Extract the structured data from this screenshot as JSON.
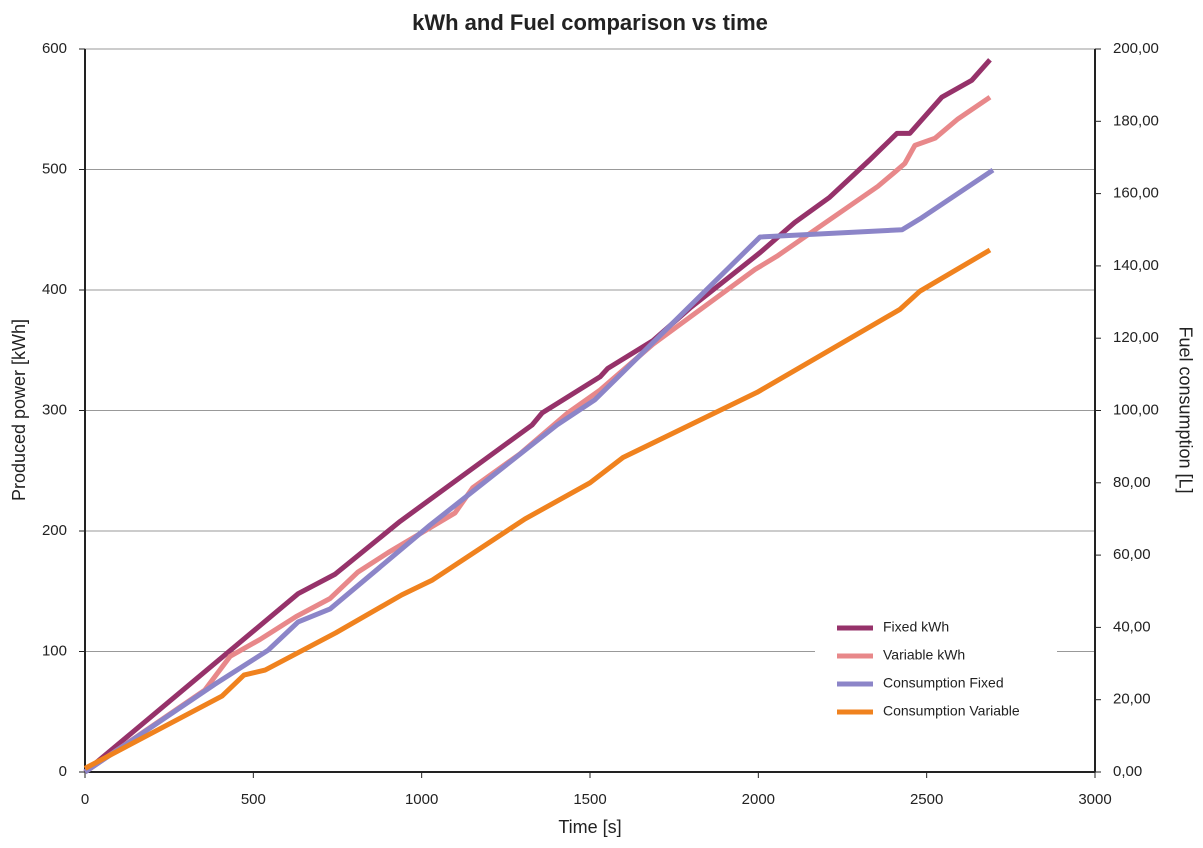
{
  "chart_data": {
    "type": "line",
    "title": "kWh and Fuel comparison vs time",
    "xlabel": "Time [s]",
    "ylabel": "Produced power [kWh]",
    "y2label": "Fuel consumption [L]",
    "xlim": [
      0,
      3000
    ],
    "xticks": [
      0,
      500,
      1000,
      1500,
      2000,
      2500,
      3000
    ],
    "ylim": [
      0,
      600
    ],
    "yticks": [
      0,
      100,
      200,
      300,
      400,
      500,
      600
    ],
    "y2lim": [
      0,
      200
    ],
    "y2ticks": [
      {
        "value": 0,
        "label": "0,00"
      },
      {
        "value": 20,
        "label": "20,00"
      },
      {
        "value": 40,
        "label": "40,00"
      },
      {
        "value": 60,
        "label": "60,00"
      },
      {
        "value": 80,
        "label": "80,00"
      },
      {
        "value": 100,
        "label": "100,00"
      },
      {
        "value": 120,
        "label": "120,00"
      },
      {
        "value": 140,
        "label": "140,00"
      },
      {
        "value": 160,
        "label": "160,00"
      },
      {
        "value": 180,
        "label": "180,00"
      },
      {
        "value": 200,
        "label": "200,00"
      }
    ],
    "grid": true,
    "legend": "lower right",
    "series": [
      {
        "name": "Fixed kWh",
        "color": "#96326a",
        "x": [
          0,
          633,
          742,
          936,
          1328,
          1358,
          1530,
          1553,
          1687,
          1797,
          1856,
          2005,
          2108,
          2212,
          2331,
          2412,
          2450,
          2545,
          2634,
          2688
        ],
        "values": [
          0,
          148,
          164,
          208,
          288,
          298,
          328,
          335,
          358,
          385,
          398,
          431,
          456,
          477,
          508,
          530,
          530,
          560,
          574,
          591
        ]
      },
      {
        "name": "Variable kWh",
        "color": "#e8888a",
        "x": [
          0,
          356,
          431,
          520,
          627,
          728,
          811,
          900,
          1099,
          1152,
          1292,
          1434,
          1530,
          1687,
          1990,
          2055,
          2355,
          2406,
          2435,
          2465,
          2525,
          2593,
          2688
        ],
        "values": [
          0,
          68,
          96,
          110,
          129,
          144,
          166,
          182,
          215,
          236,
          264,
          298,
          317,
          355,
          417,
          428,
          486,
          498,
          505,
          520,
          526,
          542,
          560
        ]
      },
      {
        "name": "Consumption Fixed",
        "color": "#8c85c8",
        "axis": "y2",
        "x": [
          0,
          386,
          544,
          633,
          728,
          1025,
          1402,
          1515,
          2005,
          2427,
          2480,
          2697
        ],
        "values": [
          0,
          24.3,
          33.7,
          41.5,
          45.1,
          68.3,
          96,
          103,
          148,
          150,
          153,
          166.5
        ]
      },
      {
        "name": "Consumption Variable",
        "color": "#f0821e",
        "axis": "y2",
        "x": [
          0,
          407,
          472,
          535,
          745,
          941,
          1030,
          1307,
          1500,
          1598,
          1996,
          2421,
          2480,
          2688
        ],
        "values": [
          1,
          21,
          26.8,
          28.2,
          38.5,
          49,
          53,
          70,
          80,
          87,
          105,
          128,
          133,
          144.4
        ]
      }
    ]
  }
}
